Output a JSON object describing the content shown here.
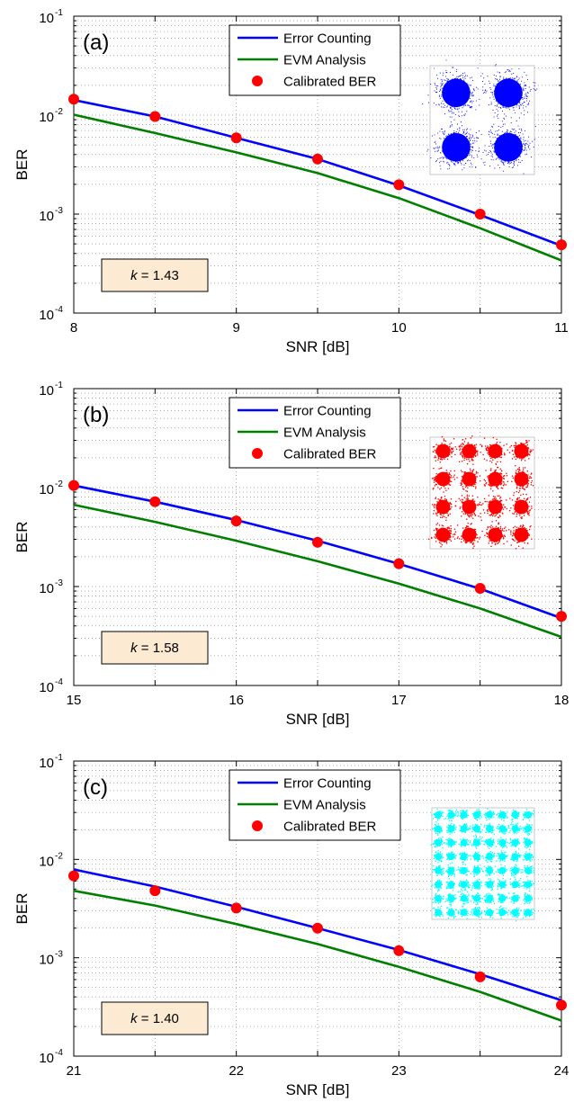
{
  "chart_data": [
    {
      "type": "line",
      "panel_label": "(a)",
      "xlabel": "SNR [dB]",
      "ylabel": "BER",
      "xlim": [
        8,
        11
      ],
      "ylim": [
        0.0001,
        0.1
      ],
      "yscale": "log",
      "grid": true,
      "legend_position": "top-center",
      "x_ticks": [
        "8",
        "9",
        "10",
        "11"
      ],
      "y_ticks": [
        {
          "base": "10",
          "exp": "-4"
        },
        {
          "base": "10",
          "exp": "-3"
        },
        {
          "base": "10",
          "exp": "-2"
        },
        {
          "base": "10",
          "exp": "-1"
        }
      ],
      "annotation": {
        "var": "k",
        "text": " = 1.43"
      },
      "constellation": {
        "order": 2,
        "color": "#0000ff"
      },
      "series": [
        {
          "name": "Error Counting",
          "color": "#0000ff",
          "style": "line",
          "x": [
            8,
            8.5,
            9,
            9.5,
            10,
            10.5,
            11
          ],
          "y": [
            0.0142,
            0.0097,
            0.0059,
            0.0036,
            0.00195,
            0.00098,
            0.00048
          ]
        },
        {
          "name": "EVM Analysis",
          "color": "#007f00",
          "style": "line",
          "x": [
            8,
            8.5,
            9,
            9.5,
            10,
            10.5,
            11
          ],
          "y": [
            0.0101,
            0.0066,
            0.0042,
            0.0026,
            0.00145,
            0.00072,
            0.00034
          ]
        },
        {
          "name": "Calibrated BER",
          "color": "#ff0000",
          "style": "markers",
          "x": [
            8,
            8.5,
            9,
            9.5,
            10,
            10.5,
            11
          ],
          "y": [
            0.0145,
            0.0097,
            0.0059,
            0.0036,
            0.00198,
            0.001,
            0.00049
          ]
        }
      ]
    },
    {
      "type": "line",
      "panel_label": "(b)",
      "xlabel": "SNR [dB]",
      "ylabel": "BER",
      "xlim": [
        15,
        18
      ],
      "ylim": [
        0.0001,
        0.1
      ],
      "yscale": "log",
      "grid": true,
      "legend_position": "top-center",
      "x_ticks": [
        "15",
        "16",
        "17",
        "18"
      ],
      "y_ticks": [
        {
          "base": "10",
          "exp": "-4"
        },
        {
          "base": "10",
          "exp": "-3"
        },
        {
          "base": "10",
          "exp": "-2"
        },
        {
          "base": "10",
          "exp": "-1"
        }
      ],
      "annotation": {
        "var": "k",
        "text": " = 1.58"
      },
      "constellation": {
        "order": 4,
        "color": "#ff0000"
      },
      "series": [
        {
          "name": "Error Counting",
          "color": "#0000ff",
          "style": "line",
          "x": [
            15,
            15.5,
            16,
            16.5,
            17,
            17.5,
            18
          ],
          "y": [
            0.0105,
            0.0072,
            0.0047,
            0.0029,
            0.0017,
            0.00095,
            0.00048
          ]
        },
        {
          "name": "EVM Analysis",
          "color": "#007f00",
          "style": "line",
          "x": [
            15,
            15.5,
            16,
            16.5,
            17,
            17.5,
            18
          ],
          "y": [
            0.0067,
            0.0045,
            0.0029,
            0.0018,
            0.00107,
            0.0006,
            0.00031
          ]
        },
        {
          "name": "Calibrated BER",
          "color": "#ff0000",
          "style": "markers",
          "x": [
            15,
            15.5,
            16,
            16.5,
            17,
            17.5,
            18
          ],
          "y": [
            0.0105,
            0.0072,
            0.0046,
            0.0028,
            0.0017,
            0.00096,
            0.0005
          ]
        }
      ]
    },
    {
      "type": "line",
      "panel_label": "(c)",
      "xlabel": "SNR [dB]",
      "ylabel": "BER",
      "xlim": [
        21,
        24
      ],
      "ylim": [
        0.0001,
        0.1
      ],
      "yscale": "log",
      "grid": true,
      "legend_position": "top-center",
      "x_ticks": [
        "21",
        "22",
        "23",
        "24"
      ],
      "y_ticks": [
        {
          "base": "10",
          "exp": "-4"
        },
        {
          "base": "10",
          "exp": "-3"
        },
        {
          "base": "10",
          "exp": "-2"
        },
        {
          "base": "10",
          "exp": "-1"
        }
      ],
      "annotation": {
        "var": "k",
        "text": " = 1.40"
      },
      "constellation": {
        "order": 8,
        "color": "#00ffff"
      },
      "series": [
        {
          "name": "Error Counting",
          "color": "#0000ff",
          "style": "line",
          "x": [
            21,
            21.5,
            22,
            22.5,
            23,
            23.5,
            24
          ],
          "y": [
            0.0079,
            0.0053,
            0.0033,
            0.002,
            0.0012,
            0.00068,
            0.00037
          ]
        },
        {
          "name": "EVM Analysis",
          "color": "#007f00",
          "style": "line",
          "x": [
            21,
            21.5,
            22,
            22.5,
            23,
            23.5,
            24
          ],
          "y": [
            0.0048,
            0.0034,
            0.0022,
            0.00138,
            0.00081,
            0.00045,
            0.00023
          ]
        },
        {
          "name": "Calibrated BER",
          "color": "#ff0000",
          "style": "markers",
          "x": [
            21,
            21.5,
            22,
            22.5,
            23,
            23.5,
            24
          ],
          "y": [
            0.0068,
            0.0048,
            0.0032,
            0.002,
            0.00118,
            0.00064,
            0.00033
          ]
        }
      ]
    }
  ]
}
